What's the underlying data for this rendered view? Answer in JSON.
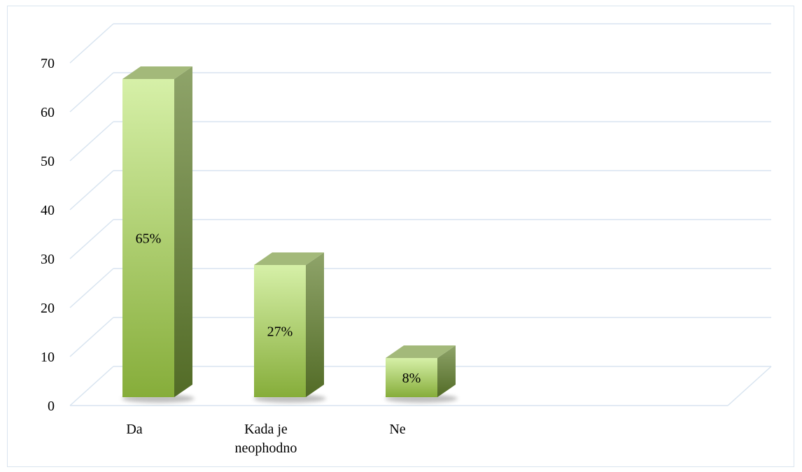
{
  "chart_data": {
    "type": "bar",
    "style": "3d-column",
    "categories": [
      "Da",
      "Kada je neophodno",
      "Ne"
    ],
    "category_lines": [
      [
        "Da"
      ],
      [
        "Kada je",
        "neophodno"
      ],
      [
        "Ne"
      ]
    ],
    "values": [
      65,
      27,
      8
    ],
    "data_labels": [
      "65%",
      "27%",
      "8%"
    ],
    "yticks": [
      "0",
      "10",
      "20",
      "30",
      "40",
      "50",
      "60",
      "70"
    ],
    "ylim": [
      0,
      70
    ],
    "grid": true,
    "legend": "none",
    "colors": {
      "bar_front_top": "#d6f0a8",
      "bar_front_bottom": "#86ad3a",
      "bar_side_top": "#8fa46a",
      "bar_side_bottom": "#526b26",
      "bar_top": "#a3b97a",
      "grid": "#d8e4f0"
    }
  }
}
